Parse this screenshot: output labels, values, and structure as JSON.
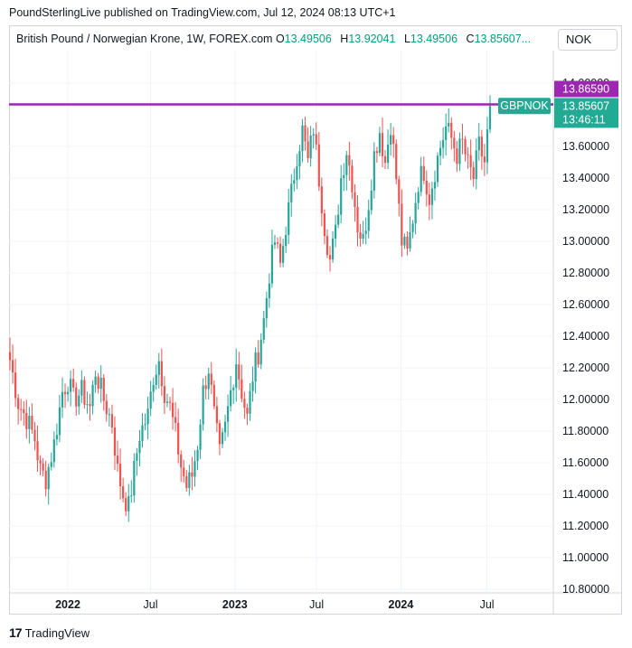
{
  "publisher": "PoundSterlingLive published on TradingView.com, Jul 12, 2024 08:13 UTC+1",
  "header": {
    "instrument": "British Pound / Norwegian Krone, 1W, FOREX.com",
    "o_label": "O",
    "o_value": "13.49506",
    "h_label": "H",
    "h_value": "13.92041",
    "l_label": "L",
    "l_value": "13.49506",
    "c_label": "C",
    "c_value": "13.85607..."
  },
  "currency": "NOK",
  "brand": "TradingView",
  "colors": {
    "up": "#26a69a",
    "down": "#ef5350",
    "resistance": "#9c27b0",
    "grid": "#f0f3fa"
  },
  "chart_data": {
    "type": "candlestick",
    "y_ticks": [
      "14.00000",
      "13.60000",
      "13.40000",
      "13.20000",
      "13.00000",
      "12.80000",
      "12.60000",
      "12.40000",
      "12.20000",
      "12.00000",
      "11.80000",
      "11.60000",
      "11.40000",
      "11.20000",
      "11.00000",
      "10.80000"
    ],
    "y_tick_values": [
      14.0,
      13.6,
      13.4,
      13.2,
      13.0,
      12.8,
      12.6,
      12.4,
      12.2,
      12.0,
      11.8,
      11.6,
      11.4,
      11.2,
      11.0,
      10.8
    ],
    "ylim": [
      10.8,
      14.1
    ],
    "x_ticks": [
      {
        "label": "2022",
        "bold": true,
        "t": 0.108
      },
      {
        "label": "Jul",
        "bold": false,
        "t": 0.26
      },
      {
        "label": "2023",
        "bold": true,
        "t": 0.415
      },
      {
        "label": "Jul",
        "bold": false,
        "t": 0.565
      },
      {
        "label": "2024",
        "bold": true,
        "t": 0.72
      },
      {
        "label": "Jul",
        "bold": false,
        "t": 0.878
      }
    ],
    "resistance_line": 13.8659,
    "resistance_label": "13.86590",
    "symbol_label": "GBPNOK",
    "last_price_label": "13.85607",
    "countdown": "13:46:11",
    "last_price": 13.85607,
    "anchors": [
      [
        0,
        12.25
      ],
      [
        3,
        11.98
      ],
      [
        6,
        11.88
      ],
      [
        9,
        11.75
      ],
      [
        11,
        11.55
      ],
      [
        13,
        11.5
      ],
      [
        16,
        11.72
      ],
      [
        19,
        12.05
      ],
      [
        21,
        12.12
      ],
      [
        23,
        12.0
      ],
      [
        26,
        12.05
      ],
      [
        29,
        11.95
      ],
      [
        31,
        12.18
      ],
      [
        34,
        12.0
      ],
      [
        37,
        11.85
      ],
      [
        39,
        11.55
      ],
      [
        41,
        11.4
      ],
      [
        43,
        11.32
      ],
      [
        45,
        11.55
      ],
      [
        47,
        11.78
      ],
      [
        50,
        11.9
      ],
      [
        52,
        12.15
      ],
      [
        54,
        12.25
      ],
      [
        56,
        12.05
      ],
      [
        58,
        11.95
      ],
      [
        60,
        11.78
      ],
      [
        62,
        11.58
      ],
      [
        64,
        11.45
      ],
      [
        66,
        11.52
      ],
      [
        68,
        11.72
      ],
      [
        70,
        12.05
      ],
      [
        72,
        12.2
      ],
      [
        74,
        11.9
      ],
      [
        76,
        11.65
      ],
      [
        78,
        11.82
      ],
      [
        80,
        12.05
      ],
      [
        82,
        12.25
      ],
      [
        84,
        12.05
      ],
      [
        86,
        11.88
      ],
      [
        88,
        12.15
      ],
      [
        90,
        12.3
      ],
      [
        92,
        12.5
      ],
      [
        94,
        12.8
      ],
      [
        96,
        13.0
      ],
      [
        98,
        12.85
      ],
      [
        100,
        13.1
      ],
      [
        102,
        13.3
      ],
      [
        104,
        13.55
      ],
      [
        106,
        13.7
      ],
      [
        108,
        13.5
      ],
      [
        110,
        13.72
      ],
      [
        112,
        13.4
      ],
      [
        114,
        13.1
      ],
      [
        116,
        12.88
      ],
      [
        118,
        13.05
      ],
      [
        120,
        13.4
      ],
      [
        122,
        13.58
      ],
      [
        124,
        13.38
      ],
      [
        126,
        13.1
      ],
      [
        128,
        13.0
      ],
      [
        130,
        13.25
      ],
      [
        132,
        13.55
      ],
      [
        134,
        13.7
      ],
      [
        136,
        13.5
      ],
      [
        138,
        13.75
      ],
      [
        140,
        13.4
      ],
      [
        142,
        13.0
      ],
      [
        144,
        12.92
      ],
      [
        146,
        13.15
      ],
      [
        148,
        13.38
      ],
      [
        150,
        13.45
      ],
      [
        152,
        13.28
      ],
      [
        154,
        13.45
      ],
      [
        156,
        13.6
      ],
      [
        158,
        13.72
      ],
      [
        160,
        13.65
      ],
      [
        162,
        13.55
      ],
      [
        164,
        13.62
      ],
      [
        166,
        13.48
      ],
      [
        168,
        13.4
      ],
      [
        170,
        13.6
      ],
      [
        172,
        13.5
      ],
      [
        174,
        13.85
      ]
    ],
    "total_bars": 175
  }
}
